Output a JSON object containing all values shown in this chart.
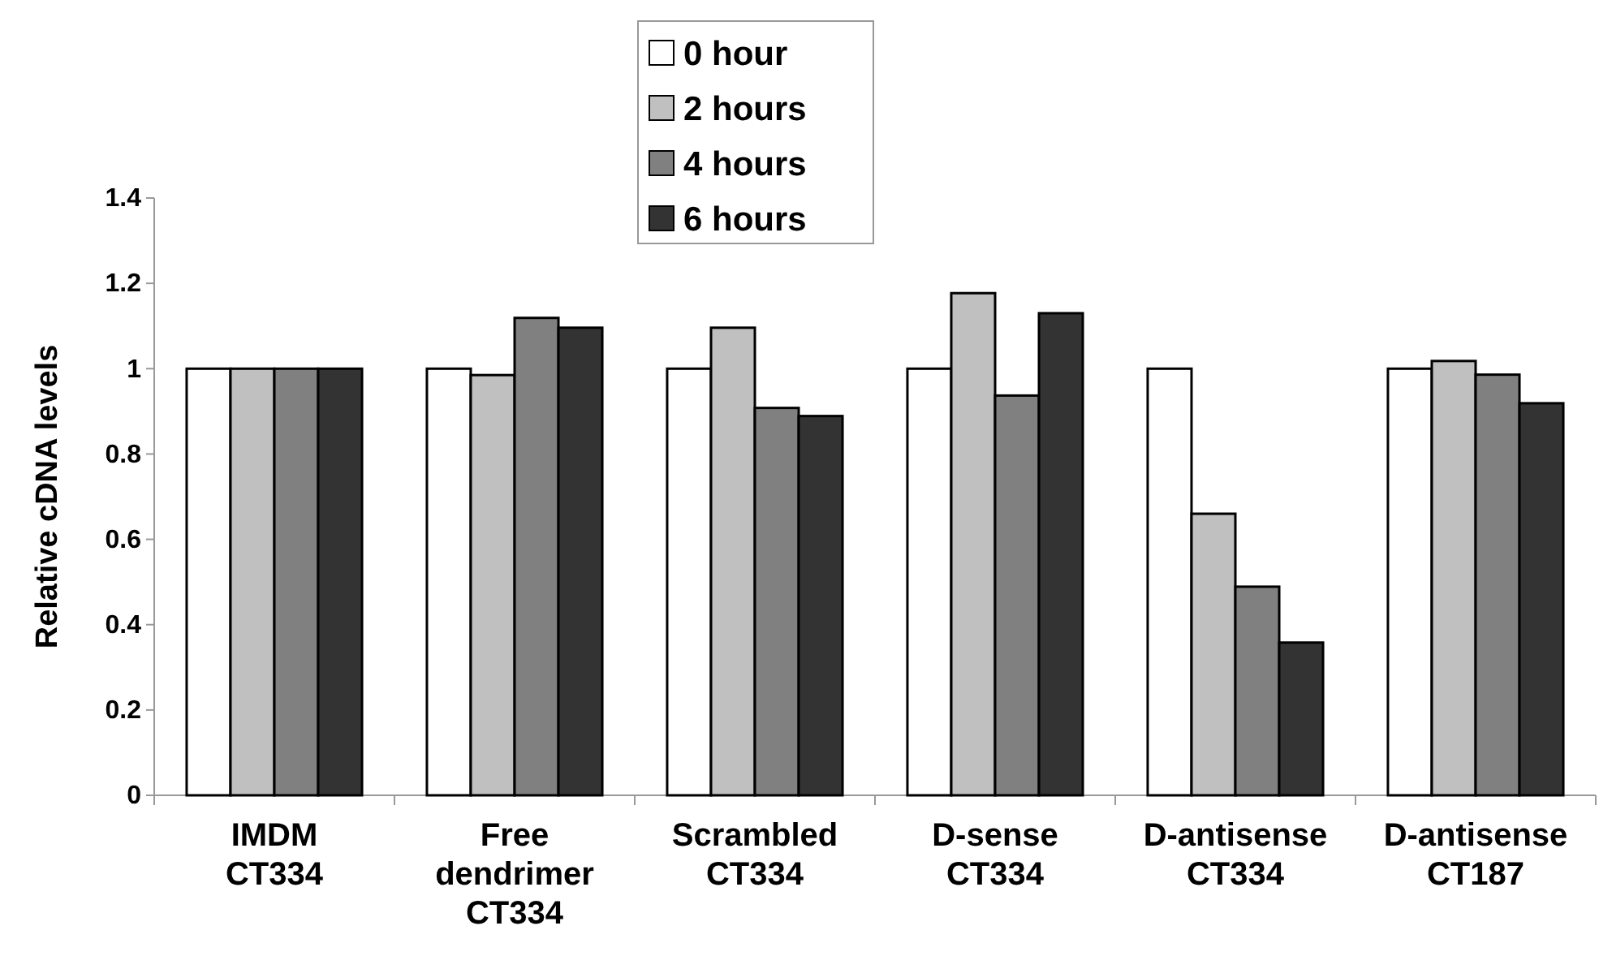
{
  "chart_data": {
    "type": "bar",
    "ylabel": "Relative cDNA levels",
    "categories": [
      "IMDM CT334",
      "Free dendrimer CT334",
      "Scrambled CT334",
      "D-sense CT334",
      "D-antisense CT334",
      "D-antisense CT187"
    ],
    "series": [
      {
        "name": "0 hour",
        "color": "#ffffff",
        "values": [
          1,
          1,
          1,
          1,
          1,
          1
        ]
      },
      {
        "name": "2 hours",
        "color": "#c0c0c0",
        "values": [
          1,
          0.985,
          1.096,
          1.177,
          0.66,
          1.018
        ]
      },
      {
        "name": "4 hours",
        "color": "#808080",
        "values": [
          1,
          1.119,
          0.908,
          0.937,
          0.489,
          0.986
        ]
      },
      {
        "name": "6 hours",
        "color": "#333333",
        "values": [
          1,
          1.096,
          0.889,
          1.13,
          0.358,
          0.919
        ]
      }
    ],
    "ylim": [
      0,
      1.4
    ],
    "yticks": [
      0,
      0.2,
      0.4,
      0.6,
      0.8,
      1,
      1.2,
      1.4
    ],
    "grid": false,
    "legend": "top"
  }
}
